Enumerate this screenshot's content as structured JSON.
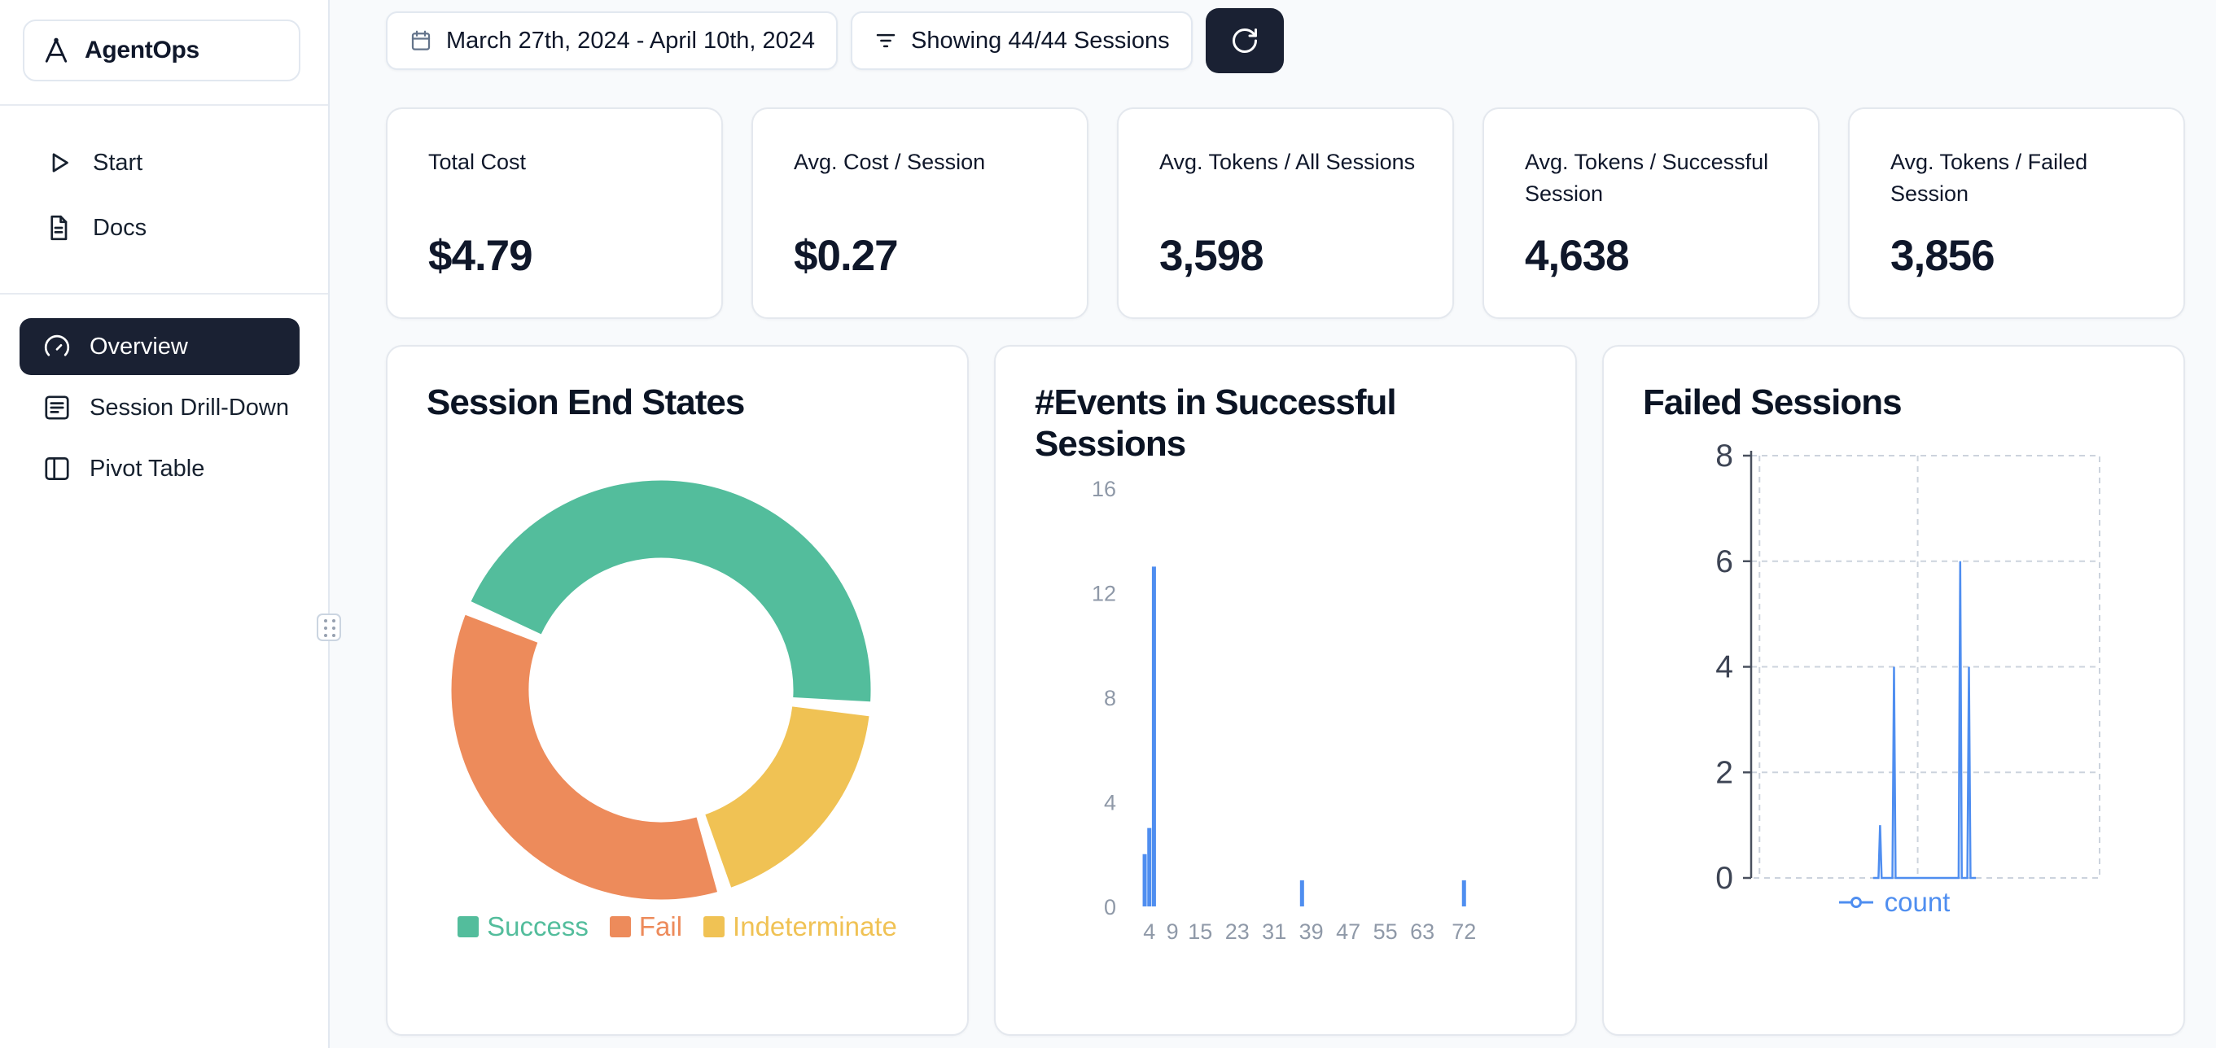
{
  "brand": {
    "name": "AgentOps"
  },
  "sidebar": {
    "items": [
      {
        "label": "Start",
        "icon": "play-icon"
      },
      {
        "label": "Docs",
        "icon": "docs-icon"
      }
    ],
    "nav": [
      {
        "label": "Overview",
        "icon": "gauge-icon",
        "active": true
      },
      {
        "label": "Session Drill-Down",
        "icon": "drill-down-icon",
        "active": false
      },
      {
        "label": "Pivot Table",
        "icon": "pivot-table-icon",
        "active": false
      }
    ]
  },
  "toolbar": {
    "date_range": "March 27th, 2024 - April 10th, 2024",
    "sessions_filter": "Showing 44/44 Sessions"
  },
  "stats": [
    {
      "label": "Total Cost",
      "value": "$4.79"
    },
    {
      "label": "Avg. Cost / Session",
      "value": "$0.27"
    },
    {
      "label": "Avg. Tokens / All Sessions",
      "value": "3,598"
    },
    {
      "label": "Avg. Tokens / Successful Session",
      "value": "4,638"
    },
    {
      "label": "Avg. Tokens / Failed Session",
      "value": "3,856"
    }
  ],
  "chart_data": [
    {
      "type": "pie",
      "title": "Session End States",
      "labels": [
        "Success",
        "Fail",
        "Indeterminate"
      ],
      "values": [
        20,
        16,
        8
      ],
      "total_sessions": 44,
      "colors": [
        "#53bd9c",
        "#ed8b5b",
        "#f0c254"
      ],
      "donut": true,
      "start_angle_deg": 295,
      "clockwise_order": [
        "Success",
        "Indeterminate",
        "Fail"
      ],
      "gap_deg": 4,
      "legend_position": "bottom"
    },
    {
      "type": "bar",
      "title": "#Events in Successful Sessions",
      "bars": [
        {
          "x": 3,
          "count": 2
        },
        {
          "x": 4,
          "count": 3
        },
        {
          "x": 5,
          "count": 13
        },
        {
          "x": 37,
          "count": 1
        },
        {
          "x": 72,
          "count": 1
        }
      ],
      "xlim": [
        0,
        76
      ],
      "ylim": [
        0,
        16
      ],
      "yticks": [
        0,
        4,
        8,
        12,
        16
      ],
      "xticks": [
        4,
        9,
        15,
        23,
        31,
        39,
        47,
        55,
        63,
        72
      ],
      "bar_color": "#4f8ef0",
      "grid": false
    },
    {
      "type": "line",
      "title": "Failed Sessions",
      "series": [
        {
          "name": "count",
          "color": "#4f8ef0",
          "spikes": [
            {
              "x": 37,
              "count": 1
            },
            {
              "x": 41,
              "count": 4
            },
            {
              "x": 60,
              "count": 6
            },
            {
              "x": 62.5,
              "count": 4
            }
          ]
        }
      ],
      "xlim": [
        0,
        100
      ],
      "ylim": [
        0,
        8
      ],
      "yticks": [
        0,
        2,
        4,
        6,
        8
      ],
      "vgrid": [
        2.4,
        47.8
      ],
      "grid": "dashed",
      "legend": "count",
      "legend_position": "bottom"
    }
  ]
}
